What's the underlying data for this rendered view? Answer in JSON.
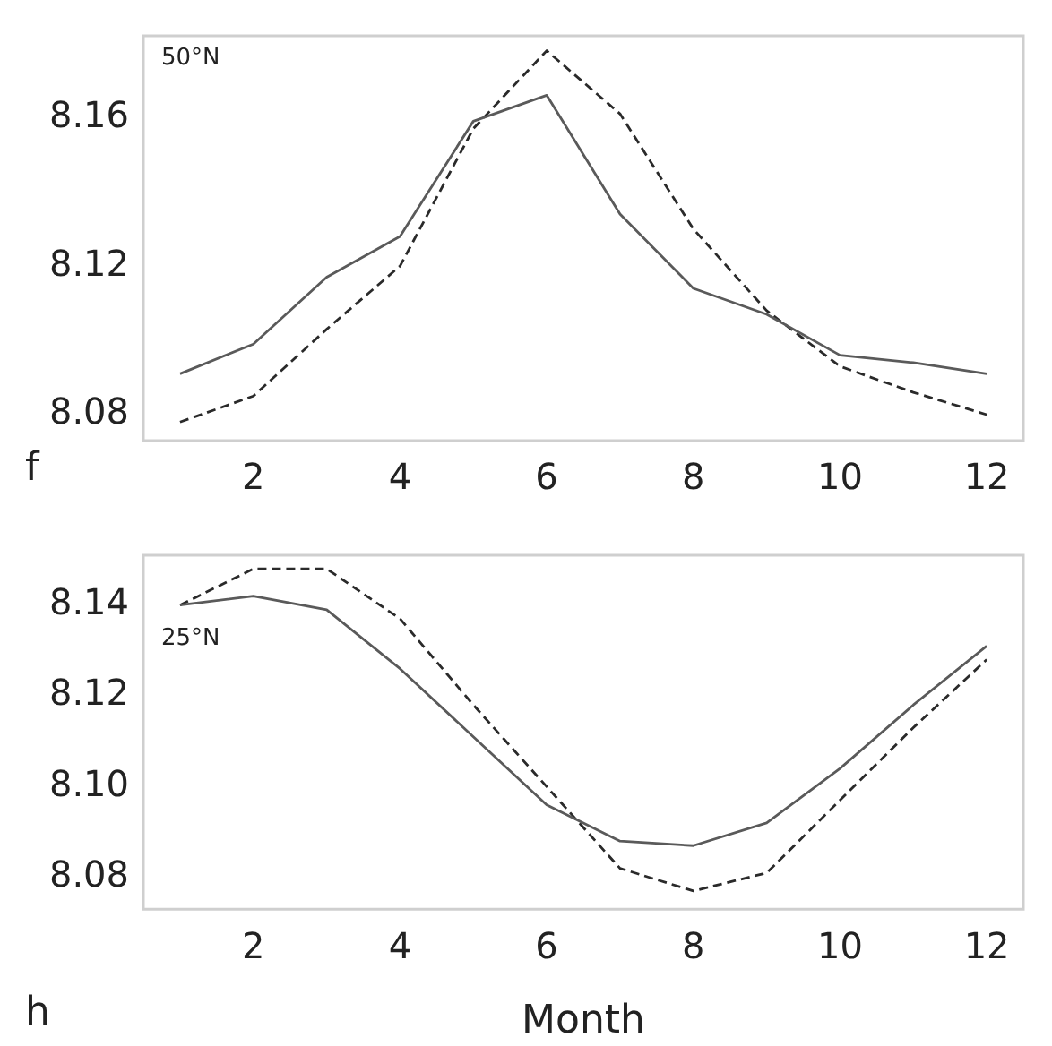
{
  "chart_data": [
    {
      "type": "line",
      "annotations": [
        "50°N",
        "f"
      ],
      "x": [
        1,
        2,
        3,
        4,
        5,
        6,
        7,
        8,
        9,
        10,
        11,
        12
      ],
      "xlim": [
        0.5,
        12.5
      ],
      "xticks": [
        2,
        4,
        6,
        8,
        10,
        12
      ],
      "ylim": [
        8.073,
        8.182
      ],
      "yticks": [
        8.08,
        8.12,
        8.16
      ],
      "grid": false,
      "legend": false,
      "marker": "none",
      "series": [
        {
          "color": "#5a5a5a",
          "line_style": "solid",
          "values": [
            8.091,
            8.099,
            8.117,
            8.128,
            8.159,
            8.166,
            8.134,
            8.114,
            8.107,
            8.096,
            8.094,
            8.091
          ]
        },
        {
          "color": "#2a2a2a",
          "line_style": "dashed",
          "values": [
            8.078,
            8.085,
            8.103,
            8.12,
            8.157,
            8.178,
            8.161,
            8.13,
            8.108,
            8.093,
            8.086,
            8.08
          ]
        }
      ]
    },
    {
      "type": "line",
      "xlabel": "Month",
      "annotations": [
        "25°N",
        "h"
      ],
      "x": [
        1,
        2,
        3,
        4,
        5,
        6,
        7,
        8,
        9,
        10,
        11,
        12
      ],
      "xlim": [
        0.5,
        12.5
      ],
      "xticks": [
        2,
        4,
        6,
        8,
        10,
        12
      ],
      "ylim": [
        8.073,
        8.151
      ],
      "yticks": [
        8.08,
        {
          "value": 8.1,
          "label": "8.10"
        },
        8.12,
        8.14
      ],
      "grid": false,
      "legend": false,
      "marker": "none",
      "series": [
        {
          "color": "#5a5a5a",
          "line_style": "solid",
          "values": [
            8.14,
            8.142,
            8.139,
            8.126,
            8.111,
            8.096,
            8.088,
            8.087,
            8.092,
            8.104,
            8.118,
            8.131
          ]
        },
        {
          "color": "#2a2a2a",
          "line_style": "dashed",
          "values": [
            8.14,
            8.148,
            8.148,
            8.137,
            8.118,
            8.1,
            8.082,
            8.077,
            8.081,
            8.097,
            8.113,
            8.128
          ]
        }
      ]
    }
  ]
}
